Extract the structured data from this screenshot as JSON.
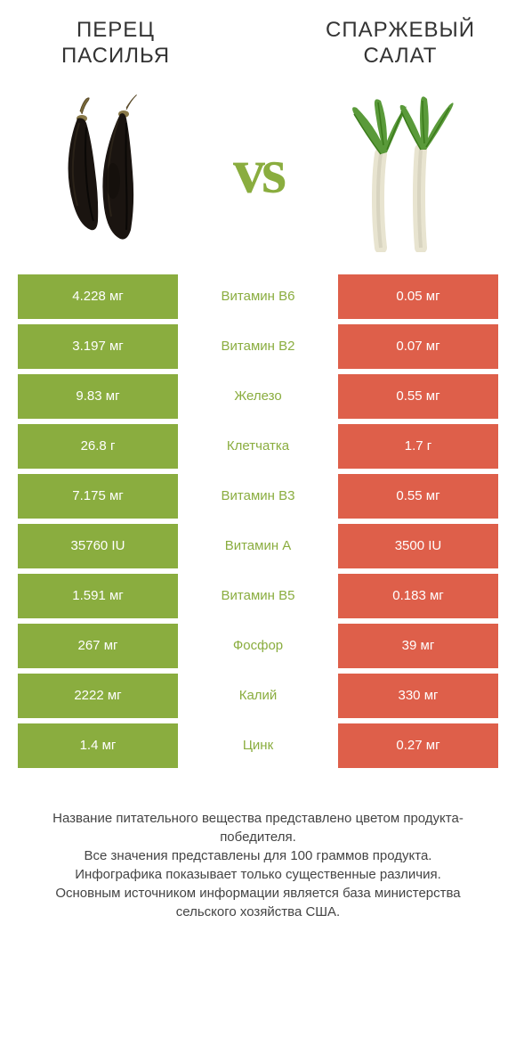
{
  "header": {
    "left_title": "ПЕРЕЦ ПАСИЛЬЯ",
    "right_title": "СПАРЖЕВЫЙ САЛАТ",
    "vs": "vs"
  },
  "colors": {
    "left": "#8aad3f",
    "right": "#de5f4a",
    "left_dark": "#7a9c35",
    "text": "#333333"
  },
  "rows": [
    {
      "left": "4.228 мг",
      "label": "Витамин B6",
      "right": "0.05 мг",
      "winner": "left"
    },
    {
      "left": "3.197 мг",
      "label": "Витамин B2",
      "right": "0.07 мг",
      "winner": "left"
    },
    {
      "left": "9.83 мг",
      "label": "Железо",
      "right": "0.55 мг",
      "winner": "left"
    },
    {
      "left": "26.8 г",
      "label": "Клетчатка",
      "right": "1.7 г",
      "winner": "left"
    },
    {
      "left": "7.175 мг",
      "label": "Витамин B3",
      "right": "0.55 мг",
      "winner": "left"
    },
    {
      "left": "35760 IU",
      "label": "Витамин A",
      "right": "3500 IU",
      "winner": "left"
    },
    {
      "left": "1.591 мг",
      "label": "Витамин B5",
      "right": "0.183 мг",
      "winner": "left"
    },
    {
      "left": "267 мг",
      "label": "Фосфор",
      "right": "39 мг",
      "winner": "left"
    },
    {
      "left": "2222 мг",
      "label": "Калий",
      "right": "330 мг",
      "winner": "left"
    },
    {
      "left": "1.4 мг",
      "label": "Цинк",
      "right": "0.27 мг",
      "winner": "left"
    }
  ],
  "footer": {
    "line1": "Название питательного вещества представлено цветом продукта-победителя.",
    "line2": "Все значения представлены для 100 граммов продукта.",
    "line3": "Инфографика показывает только существенные различия.",
    "line4": "Основным источником информации является база министерства сельского хозяйства США."
  }
}
